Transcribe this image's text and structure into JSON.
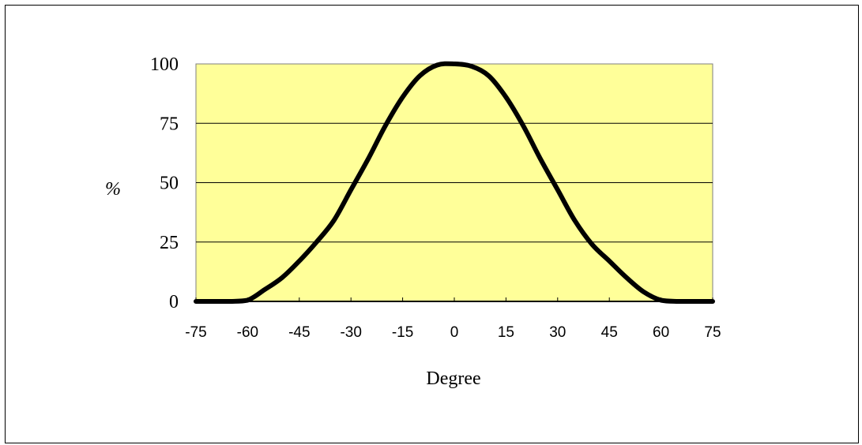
{
  "chart_data": {
    "type": "line",
    "title": "",
    "xlabel": "Degree",
    "ylabel": "%",
    "xlim": [
      -75,
      75
    ],
    "ylim": [
      0,
      100
    ],
    "xticks": [
      "-75",
      "-60",
      "-45",
      "-30",
      "-15",
      "0",
      "15",
      "30",
      "45",
      "60",
      "75"
    ],
    "yticks": [
      "0",
      "25",
      "50",
      "75",
      "100"
    ],
    "grid": "horizontal",
    "plot_background": "#ffff99",
    "line_color": "#000000",
    "series": [
      {
        "x": [
          -75,
          -70,
          -65,
          -60,
          -55,
          -50,
          -45,
          -40,
          -35,
          -30,
          -25,
          -20,
          -15,
          -10,
          -5,
          0,
          5,
          10,
          15,
          20,
          25,
          30,
          35,
          40,
          45,
          50,
          55,
          60,
          65,
          70,
          75
        ],
        "values": [
          0,
          0,
          0,
          0.5,
          5,
          10,
          17,
          25,
          34,
          47,
          60,
          74,
          86,
          95,
          99.5,
          100,
          99,
          95,
          86,
          74,
          60,
          47,
          34,
          24,
          17,
          10,
          4,
          0.5,
          0,
          0,
          0
        ]
      }
    ]
  }
}
